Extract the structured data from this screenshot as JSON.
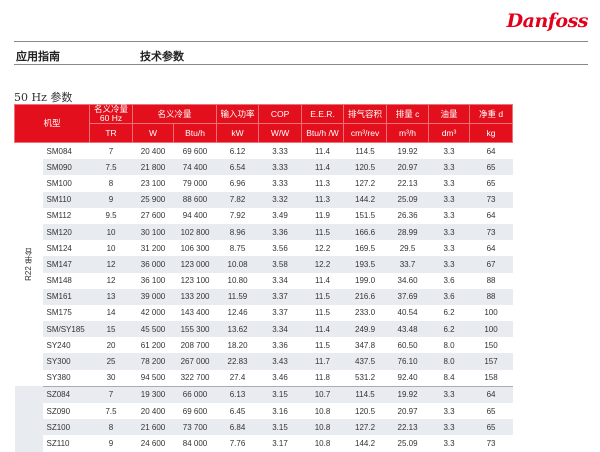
{
  "brand": "Danfoss",
  "header": {
    "section": "应用指南",
    "title": "技术参数"
  },
  "subtitle": "50 Hz 参数",
  "table": {
    "headers": {
      "model": "机型",
      "tr_top": "名义冷量\n60 Hz",
      "cap": "名义冷量",
      "power": "输入功率",
      "cop": "COP",
      "eer": "E.E.R.",
      "disp": "排气容积",
      "flow": "排量 c",
      "oil": "油量",
      "weight": "净重 d"
    },
    "units": [
      "TR",
      "W",
      "Btu/h",
      "kW",
      "W/W",
      "Btu/h /W",
      "cm³/rev",
      "m³/h",
      "dm³",
      "kg"
    ],
    "group_label": "R22 单台",
    "rows": [
      [
        "SM084",
        "7",
        "20 400",
        "69 600",
        "6.12",
        "3.33",
        "11.4",
        "114.5",
        "19.92",
        "3.3",
        "64"
      ],
      [
        "SM090",
        "7.5",
        "21 800",
        "74 400",
        "6.54",
        "3.33",
        "11.4",
        "120.5",
        "20.97",
        "3.3",
        "65"
      ],
      [
        "SM100",
        "8",
        "23 100",
        "79 000",
        "6.96",
        "3.33",
        "11.3",
        "127.2",
        "22.13",
        "3.3",
        "65"
      ],
      [
        "SM110",
        "9",
        "25 900",
        "88 600",
        "7.82",
        "3.32",
        "11.3",
        "144.2",
        "25.09",
        "3.3",
        "73"
      ],
      [
        "SM112",
        "9.5",
        "27 600",
        "94 400",
        "7.92",
        "3.49",
        "11.9",
        "151.5",
        "26.36",
        "3.3",
        "64"
      ],
      [
        "SM120",
        "10",
        "30 100",
        "102 800",
        "8.96",
        "3.36",
        "11.5",
        "166.6",
        "28.99",
        "3.3",
        "73"
      ],
      [
        "SM124",
        "10",
        "31 200",
        "106 300",
        "8.75",
        "3.56",
        "12.2",
        "169.5",
        "29.5",
        "3.3",
        "64"
      ],
      [
        "SM147",
        "12",
        "36 000",
        "123 000",
        "10.08",
        "3.58",
        "12.2",
        "193.5",
        "33.7",
        "3.3",
        "67"
      ],
      [
        "SM148",
        "12",
        "36 100",
        "123 100",
        "10.80",
        "3.34",
        "11.4",
        "199.0",
        "34.60",
        "3.6",
        "88"
      ],
      [
        "SM161",
        "13",
        "39 000",
        "133 200",
        "11.59",
        "3.37",
        "11.5",
        "216.6",
        "37.69",
        "3.6",
        "88"
      ],
      [
        "SM175",
        "14",
        "42 000",
        "143 400",
        "12.46",
        "3.37",
        "11.5",
        "233.0",
        "40.54",
        "6.2",
        "100"
      ],
      [
        "SM/SY185",
        "15",
        "45 500",
        "155 300",
        "13.62",
        "3.34",
        "11.4",
        "249.9",
        "43.48",
        "6.2",
        "100"
      ],
      [
        "SY240",
        "20",
        "61 200",
        "208 700",
        "18.20",
        "3.36",
        "11.5",
        "347.8",
        "60.50",
        "8.0",
        "150"
      ],
      [
        "SY300",
        "25",
        "78 200",
        "267 000",
        "22.83",
        "3.43",
        "11.7",
        "437.5",
        "76.10",
        "8.0",
        "157"
      ],
      [
        "SY380",
        "30",
        "94 500",
        "322 700",
        "27.4",
        "3.46",
        "11.8",
        "531.2",
        "92.40",
        "8.4",
        "158"
      ],
      [
        "SZ084",
        "7",
        "19 300",
        "66 000",
        "6.13",
        "3.15",
        "10.7",
        "114.5",
        "19.92",
        "3.3",
        "64"
      ],
      [
        "SZ090",
        "7.5",
        "20 400",
        "69 600",
        "6.45",
        "3.16",
        "10.8",
        "120.5",
        "20.97",
        "3.3",
        "65"
      ],
      [
        "SZ100",
        "8",
        "21 600",
        "73 700",
        "6.84",
        "3.15",
        "10.8",
        "127.2",
        "22.13",
        "3.3",
        "65"
      ],
      [
        "SZ110",
        "9",
        "24 600",
        "84 000",
        "7.76",
        "3.17",
        "10.8",
        "144.2",
        "25.09",
        "3.3",
        "73"
      ]
    ]
  }
}
